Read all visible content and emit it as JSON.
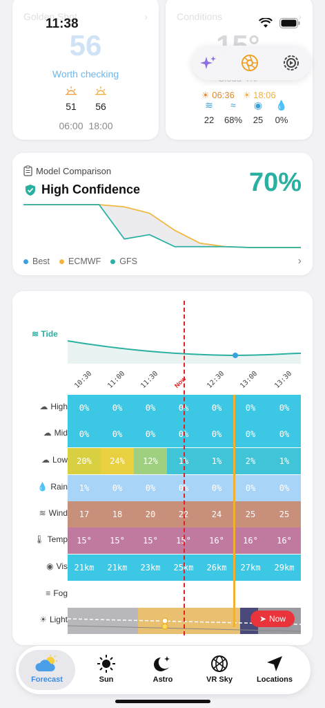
{
  "status_bar": {
    "time": "11:38"
  },
  "golden_card": {
    "title": "Golden Shot",
    "score": "56",
    "verdict": "Worth checking",
    "sunrise": {
      "value": "51",
      "time": "06:00"
    },
    "sunset": {
      "value": "56",
      "time": "18:00"
    }
  },
  "conditions_card": {
    "title": "Conditions",
    "temp": "15°",
    "subtitle": "Cloud 4%",
    "sunrise": "06:36",
    "sunset": "18:06",
    "metrics": [
      {
        "icon": "wind-icon",
        "value": "22"
      },
      {
        "icon": "humidity-icon",
        "value": "68%"
      },
      {
        "icon": "visibility-icon",
        "value": "25"
      },
      {
        "icon": "rain-icon",
        "value": "0%"
      }
    ]
  },
  "toolbar": {
    "buttons": [
      "sparkles-icon",
      "aperture-icon",
      "settings-icon"
    ]
  },
  "model_card": {
    "title": "Model Comparison",
    "confidence": "High Confidence",
    "percent": "70%",
    "legend": [
      {
        "name": "Best",
        "color": "#3aa0e0"
      },
      {
        "name": "ECMWF",
        "color": "#f0b840"
      },
      {
        "name": "GFS",
        "color": "#2ab0a0"
      }
    ]
  },
  "chart_data": {
    "type": "line",
    "title": "",
    "series": [
      {
        "name": "ECMWF",
        "values": [
          100,
          100,
          100,
          100,
          95,
          80,
          40,
          10,
          2,
          0,
          0,
          0
        ]
      },
      {
        "name": "GFS",
        "values": [
          100,
          100,
          100,
          100,
          20,
          30,
          2,
          2,
          2,
          0,
          0,
          0
        ]
      }
    ],
    "ylim": [
      0,
      100
    ]
  },
  "timeline": {
    "tide_label": "Tide",
    "times": [
      "10:30",
      "11:00",
      "11:30",
      "Now",
      "12:30",
      "13:00",
      "13:30"
    ],
    "rows": [
      {
        "label": "High",
        "icon": "cloud-icon",
        "values": [
          "0%",
          "0%",
          "0%",
          "0%",
          "0%",
          "0%",
          "0%"
        ]
      },
      {
        "label": "Mid",
        "icon": "cloud-icon",
        "values": [
          "0%",
          "0%",
          "0%",
          "0%",
          "0%",
          "0%",
          "0%"
        ]
      },
      {
        "label": "Low",
        "icon": "cloud-icon",
        "values": [
          "20%",
          "24%",
          "12%",
          "1%",
          "1%",
          "2%",
          "1%"
        ]
      },
      {
        "label": "Rain",
        "icon": "rain-drop-icon",
        "values": [
          "1%",
          "0%",
          "0%",
          "0%",
          "0%",
          "0%",
          "0%"
        ]
      },
      {
        "label": "Wind",
        "icon": "wind-icon",
        "values": [
          "17",
          "18",
          "20",
          "22",
          "24",
          "25",
          "25"
        ]
      },
      {
        "label": "Temp",
        "icon": "thermometer-icon",
        "values": [
          "15°",
          "15°",
          "15°",
          "15°",
          "16°",
          "16°",
          "16°"
        ]
      },
      {
        "label": "Vis",
        "icon": "eye-icon",
        "values": [
          "21km",
          "21km",
          "23km",
          "25km",
          "26km",
          "27km",
          "29km"
        ]
      },
      {
        "label": "Fog",
        "icon": "fog-icon",
        "values": [
          "",
          "",
          "",
          "",
          "",
          "",
          ""
        ]
      },
      {
        "label": "Light",
        "icon": "sun-icon",
        "values": [
          "",
          "",
          "",
          "",
          "",
          "",
          ""
        ]
      }
    ],
    "now_button": "Now"
  },
  "tabbar": {
    "tabs": [
      {
        "label": "Forecast",
        "icon": "partly-cloudy-icon",
        "active": true
      },
      {
        "label": "Sun",
        "icon": "sun-icon",
        "active": false
      },
      {
        "label": "Astro",
        "icon": "moon-stars-icon",
        "active": false
      },
      {
        "label": "VR Sky",
        "icon": "vr-sky-icon",
        "active": false
      },
      {
        "label": "Locations",
        "icon": "location-arrow-icon",
        "active": false
      }
    ]
  }
}
